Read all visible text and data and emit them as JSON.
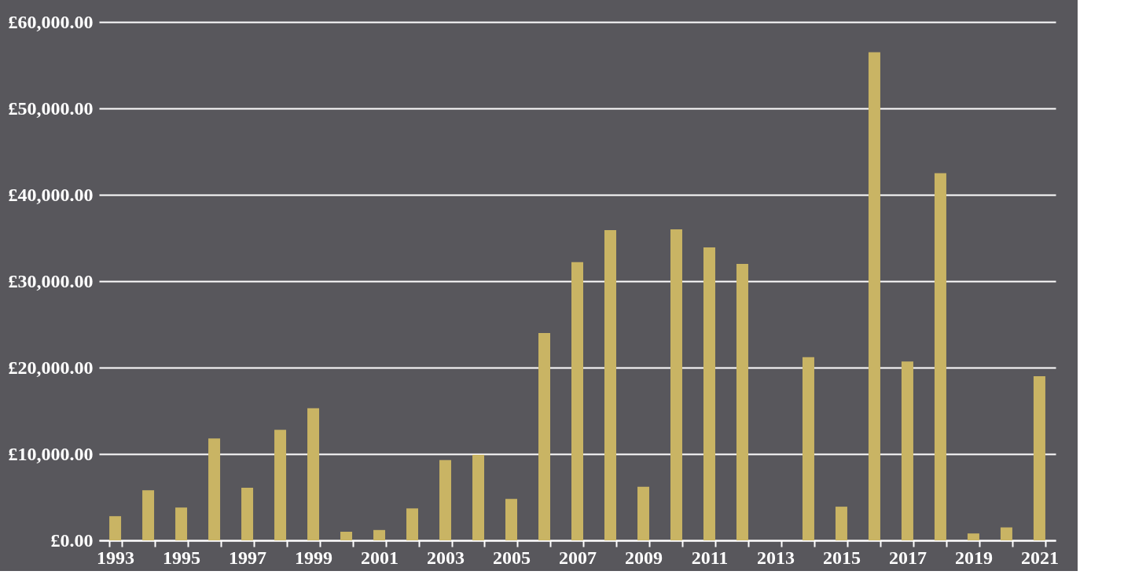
{
  "chart_data": {
    "type": "bar",
    "categories": [
      "1993",
      null,
      "1995",
      null,
      "1997",
      null,
      "1999",
      null,
      "2001",
      null,
      "2003",
      null,
      "2005",
      null,
      "2007",
      null,
      "2009",
      null,
      "2011",
      null,
      "2013",
      null,
      "2015",
      null,
      "2017",
      null,
      "2019",
      null,
      "2021"
    ],
    "values": [
      2800,
      5800,
      3800,
      11800,
      6100,
      12800,
      15300,
      1000,
      1200,
      3700,
      9300,
      9900,
      4800,
      24000,
      32200,
      35900,
      6200,
      36000,
      33900,
      32000,
      0,
      21200,
      3900,
      56500,
      20700,
      42500,
      800,
      1500,
      19000
    ],
    "color": "#c9b464",
    "ylim": [
      0,
      60000
    ],
    "yticks": [
      {
        "value": 0,
        "label": "£0.00"
      },
      {
        "value": 10000,
        "label": "£10,000.00"
      },
      {
        "value": 20000,
        "label": "£20,000.00"
      },
      {
        "value": 30000,
        "label": "£30,000.00"
      },
      {
        "value": 40000,
        "label": "£40,000.00"
      },
      {
        "value": 50000,
        "label": "£50,000.00"
      },
      {
        "value": 60000,
        "label": "£60,000.00"
      }
    ],
    "grid": "y"
  }
}
